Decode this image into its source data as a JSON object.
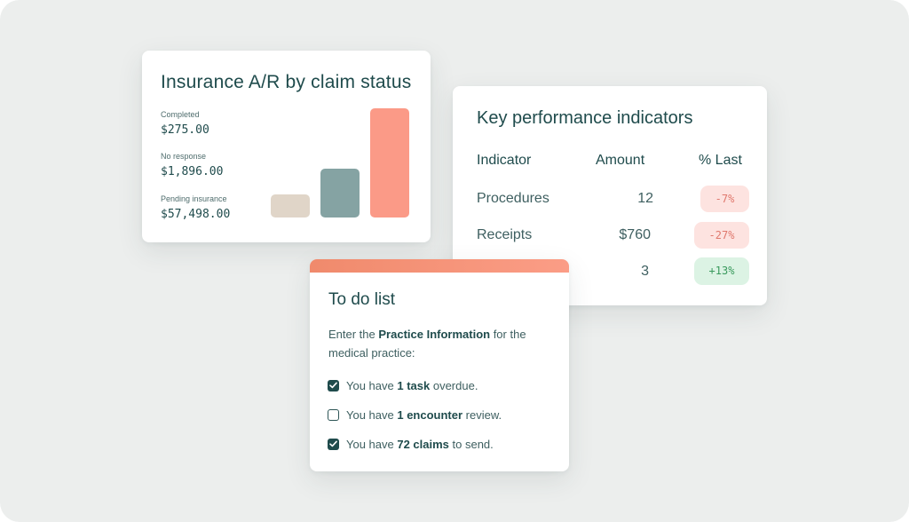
{
  "ar_card": {
    "title": "Insurance A/R by claim status",
    "stats": [
      {
        "label": "Completed",
        "value": "$275.00"
      },
      {
        "label": "No response",
        "value": "$1,896.00"
      },
      {
        "label": "Pending insurance",
        "value": "$57,498.00"
      }
    ]
  },
  "chart_data": {
    "type": "bar",
    "categories": [
      "Completed",
      "No response",
      "Pending insurance"
    ],
    "values": [
      275,
      1896,
      57498
    ],
    "colors": [
      "#e0d5c8",
      "#85a3a3",
      "#fb9a87"
    ],
    "title": "Insurance A/R by claim status",
    "grid": false,
    "legend": "none"
  },
  "kpi_card": {
    "title": "Key performance indicators",
    "headers": {
      "indicator": "Indicator",
      "amount": "Amount",
      "last": "% Last"
    },
    "rows": [
      {
        "indicator": "Procedures",
        "amount": "12",
        "change": "-7%",
        "trend": "negative"
      },
      {
        "indicator": "Receipts",
        "amount": "$760",
        "change": "-27%",
        "trend": "negative"
      },
      {
        "indicator": "",
        "amount": "3",
        "change": "+13%",
        "trend": "positive"
      }
    ]
  },
  "todo_card": {
    "title": "To do list",
    "desc_prefix": "Enter the ",
    "desc_bold": "Practice Information",
    "desc_suffix": " for the medical practice:",
    "tasks": [
      {
        "prefix": "You have ",
        "bold": "1 task",
        "suffix": " overdue.",
        "checked": true
      },
      {
        "prefix": "You have ",
        "bold": "1 encounter",
        "suffix": " review.",
        "checked": false
      },
      {
        "prefix": "You have ",
        "bold": "72 claims",
        "suffix": " to send.",
        "checked": true
      }
    ]
  },
  "colors": {
    "primary_text": "#1f4b4c",
    "accent": "#fb9a87",
    "negative_badge": "#fde3e0",
    "positive_badge": "#dcf3e4"
  }
}
